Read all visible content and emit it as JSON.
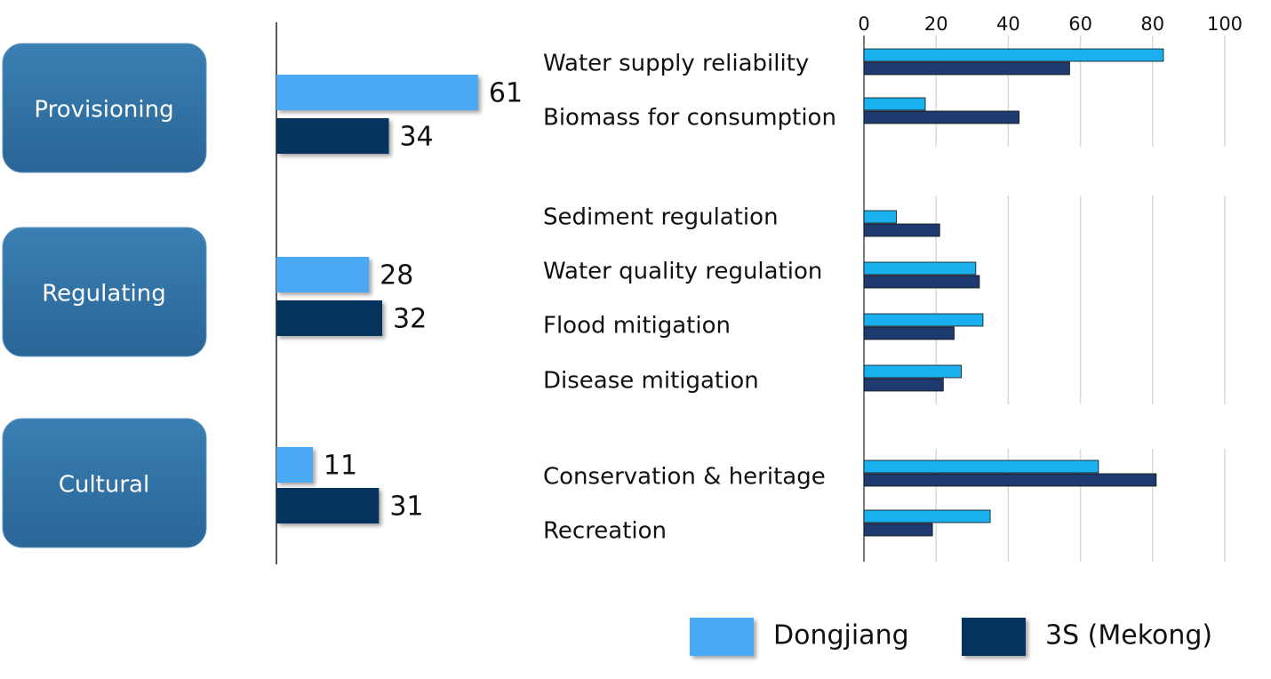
{
  "chart_data": [
    {
      "type": "bar",
      "orientation": "horizontal",
      "categories": [
        "Provisioning",
        "Regulating",
        "Cultural"
      ],
      "series": [
        {
          "name": "Dongjiang",
          "color": "#4aa8f5",
          "values": [
            61,
            28,
            11
          ]
        },
        {
          "name": "3S (Mekong)",
          "color": "#05335e",
          "values": [
            34,
            32,
            31
          ]
        }
      ]
    },
    {
      "type": "bar",
      "orientation": "horizontal",
      "categories": [
        "Water supply reliability",
        "Biomass for consumption",
        "Sediment regulation",
        "Water quality regulation",
        "Flood mitigation",
        "Disease mitigation",
        "Conservation & heritage",
        "Recreation"
      ],
      "series": [
        {
          "color": "#1ab0f0",
          "values": [
            83,
            17,
            9,
            31,
            33,
            27,
            65,
            35
          ]
        },
        {
          "color": "#1f3a6e",
          "values": [
            57,
            43,
            21,
            32,
            25,
            22,
            81,
            19
          ]
        }
      ],
      "xlim": [
        0,
        100
      ],
      "xticks": [
        0,
        20,
        40,
        60,
        80,
        100
      ],
      "grid": true
    }
  ]
}
